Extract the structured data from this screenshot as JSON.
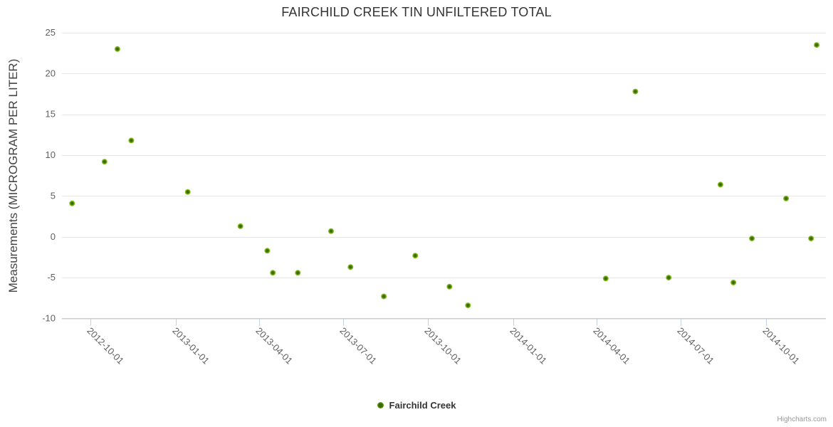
{
  "title": "FAIRCHILD CREEK TIN UNFILTERED TOTAL",
  "legend": {
    "items": [
      {
        "label": "Fairchild Creek"
      }
    ]
  },
  "credits": "Highcharts.com",
  "colors": {
    "title": "#333333",
    "axis_label": "#606060",
    "y_axis_title": "#444444",
    "grid": "#e6e6e6",
    "axis_line": "#c0d0e0",
    "marker_inner": "#3a6b05",
    "marker_outer": "#8ac122",
    "legend_text": "#333333",
    "credits_text": "#999999"
  },
  "chart_data": {
    "type": "scatter",
    "title": "FAIRCHILD CREEK TIN UNFILTERED TOTAL",
    "xlabel": "",
    "ylabel": "Measurements (MICROGRAM PER LITER)",
    "legend_position": "bottom-center",
    "grid": "horizontal",
    "ylim": [
      -10,
      25
    ],
    "yticks": [
      25,
      20,
      15,
      10,
      5,
      0,
      -5,
      -10
    ],
    "xlim": [
      "2012-08-31",
      "2014-12-05"
    ],
    "xticks": [
      "2012-10-01",
      "2013-01-01",
      "2013-04-01",
      "2013-07-01",
      "2013-10-01",
      "2014-01-01",
      "2014-04-01",
      "2014-07-01",
      "2014-10-01"
    ],
    "series": [
      {
        "name": "Fairchild Creek",
        "points": [
          {
            "date": "2012-09-11",
            "value": 4.1
          },
          {
            "date": "2012-10-16",
            "value": 9.2
          },
          {
            "date": "2012-10-30",
            "value": 23.0
          },
          {
            "date": "2012-11-14",
            "value": 11.8
          },
          {
            "date": "2013-01-14",
            "value": 5.5
          },
          {
            "date": "2013-03-12",
            "value": 1.3
          },
          {
            "date": "2013-04-10",
            "value": -1.7
          },
          {
            "date": "2013-04-16",
            "value": -4.4
          },
          {
            "date": "2013-05-13",
            "value": -4.4
          },
          {
            "date": "2013-06-18",
            "value": 0.7
          },
          {
            "date": "2013-07-09",
            "value": -3.7
          },
          {
            "date": "2013-08-14",
            "value": -7.3
          },
          {
            "date": "2013-09-17",
            "value": -2.3
          },
          {
            "date": "2013-10-24",
            "value": -6.1
          },
          {
            "date": "2013-11-13",
            "value": -8.4
          },
          {
            "date": "2014-04-11",
            "value": -5.1
          },
          {
            "date": "2014-05-13",
            "value": 17.8
          },
          {
            "date": "2014-06-18",
            "value": -5.0
          },
          {
            "date": "2014-08-13",
            "value": 6.4
          },
          {
            "date": "2014-08-27",
            "value": -5.6
          },
          {
            "date": "2014-09-16",
            "value": -0.2
          },
          {
            "date": "2014-10-23",
            "value": 4.7
          },
          {
            "date": "2014-11-19",
            "value": -0.2
          },
          {
            "date": "2014-11-25",
            "value": 23.5
          }
        ]
      }
    ]
  }
}
